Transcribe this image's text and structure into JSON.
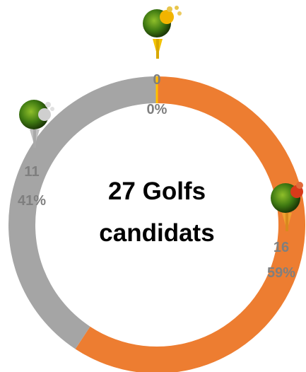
{
  "center": {
    "line1": "27 Golfs",
    "line2": "candidats"
  },
  "chart_data": {
    "type": "pie",
    "variant": "donut",
    "total": 27,
    "slices": [
      {
        "category": "orange",
        "value": 16,
        "percent_label": "59%",
        "color": "#ED7D31",
        "icon": "tree-with-red-fruit-icon"
      },
      {
        "category": "gray",
        "value": 11,
        "percent_label": "41%",
        "color": "#A5A5A5",
        "icon": "tree-with-gray-blob-icon"
      },
      {
        "category": "yellow",
        "value": 0,
        "percent_label": "0%",
        "color": "#FFC000",
        "icon": "tree-with-yellow-fruit-icon"
      }
    ]
  }
}
